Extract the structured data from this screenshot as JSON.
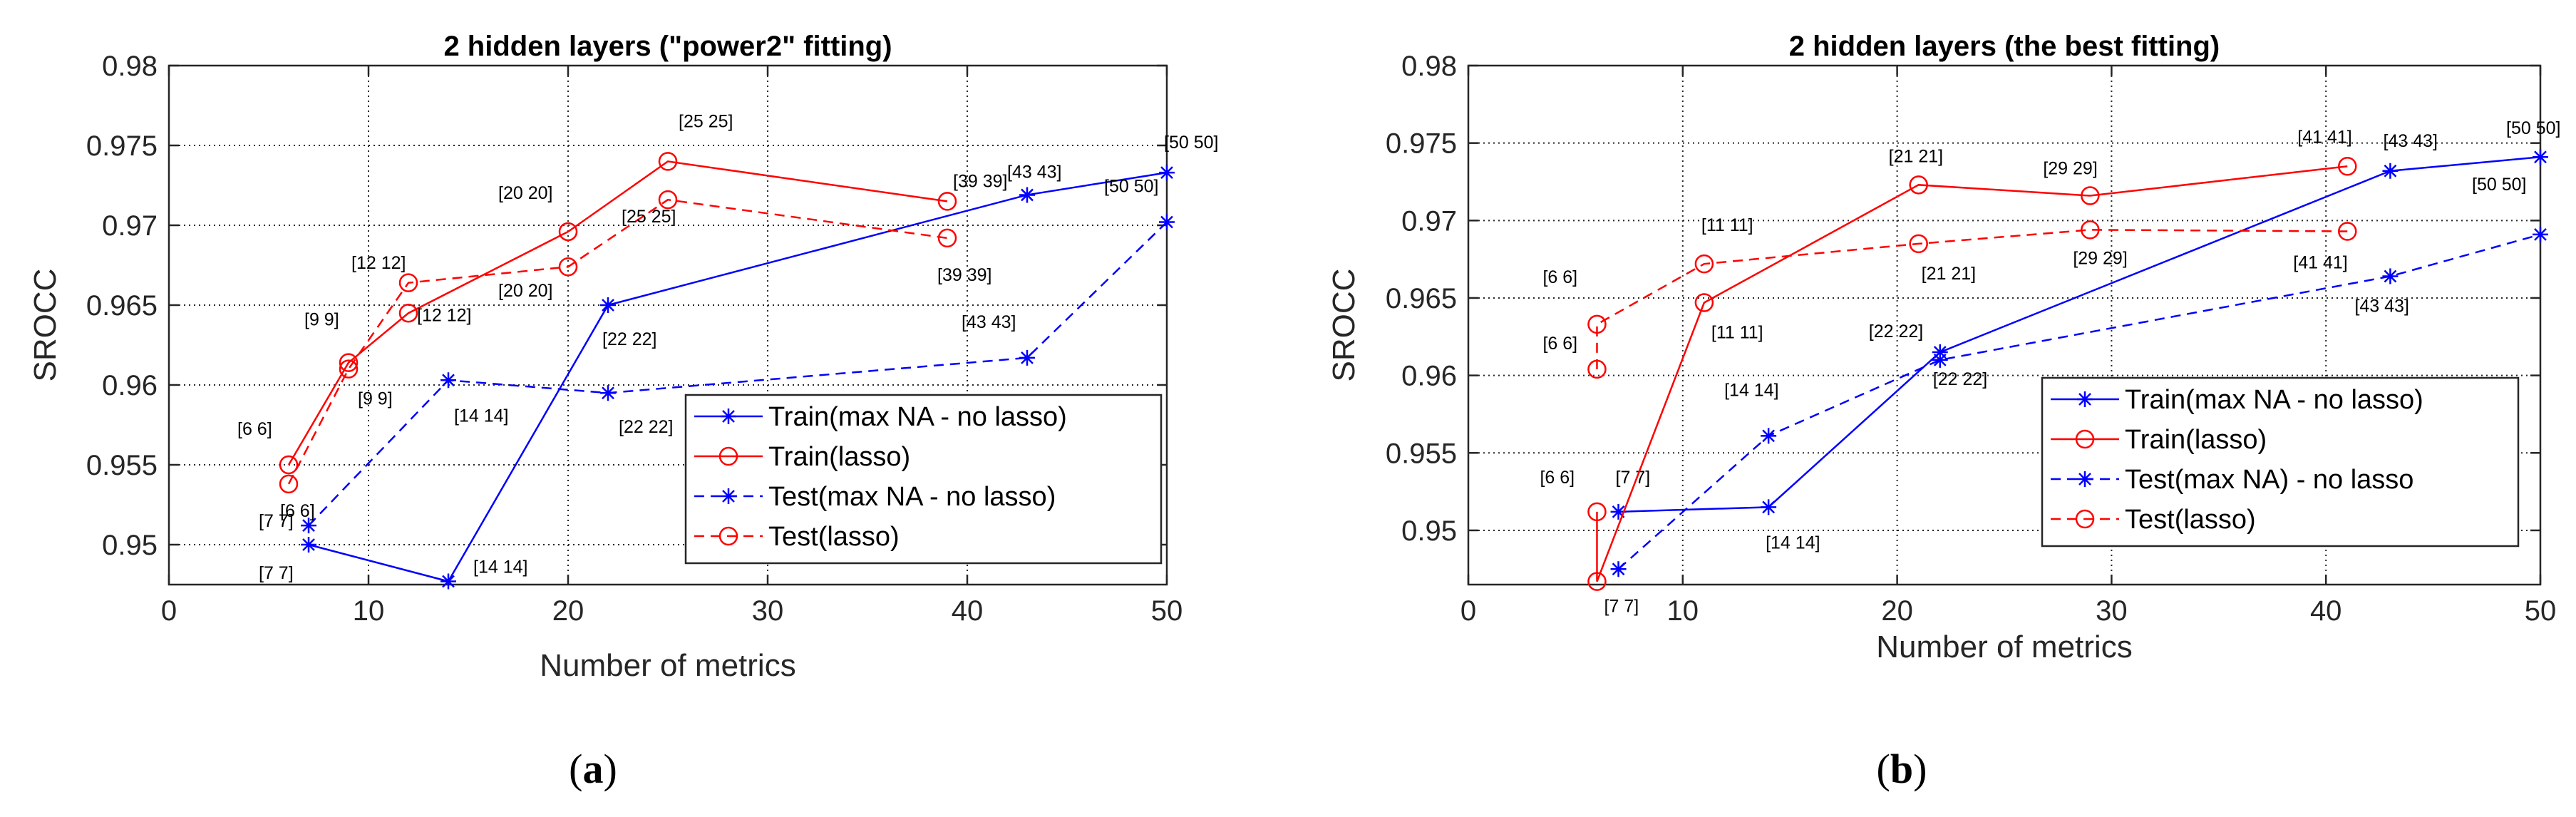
{
  "chart_data": [
    {
      "type": "line",
      "title": "2 hidden layers (\"power2\" fitting)",
      "xlabel": "Number of metrics",
      "ylabel": "SROCC",
      "xlim": [
        0,
        50
      ],
      "ylim": [
        0.9475,
        0.98
      ],
      "xticks": [
        0,
        10,
        20,
        30,
        40,
        50
      ],
      "yticks": [
        0.95,
        0.955,
        0.96,
        0.965,
        0.97,
        0.975,
        0.98
      ],
      "ytick_labels": [
        "0.95",
        "0.955",
        "0.96",
        "0.965",
        "0.97",
        "0.975",
        "0.98"
      ],
      "grid": true,
      "caption_open": "(",
      "caption_letter": "a",
      "caption_close": ")",
      "legend_position": "bottom-right",
      "series": [
        {
          "name": "Train(max NA - no lasso)",
          "color": "#0000ff",
          "style": "solid",
          "marker": "star",
          "x": [
            7,
            14,
            22,
            43,
            50
          ],
          "y": [
            0.95,
            0.9477,
            0.965,
            0.9719,
            0.9733
          ],
          "labels": [
            "[7 7]",
            "[14 14]",
            "[22 22]",
            "[43 43]",
            "[50 50]"
          ]
        },
        {
          "name": "Train(lasso)",
          "color": "#ff0000",
          "style": "solid",
          "marker": "circle",
          "x": [
            6,
            9,
            12,
            20,
            25,
            39
          ],
          "y": [
            0.955,
            0.9614,
            0.9645,
            0.9696,
            0.974,
            0.9715
          ],
          "labels": [
            "[6 6]",
            "[9 9]",
            "[12 12]",
            "[20 20]",
            "[25 25]",
            "[39 39]"
          ]
        },
        {
          "name": "Test(max NA - no lasso)",
          "color": "#0000ff",
          "style": "dashed",
          "marker": "star",
          "x": [
            7,
            14,
            22,
            43,
            50
          ],
          "y": [
            0.9512,
            0.9603,
            0.9595,
            0.9617,
            0.9702
          ],
          "labels": [
            "[7 7]",
            "[14 14]",
            "[22 22]",
            "[43 43]",
            "[50 50]"
          ]
        },
        {
          "name": "Test(lasso)",
          "color": "#ff0000",
          "style": "dashed",
          "marker": "circle",
          "x": [
            6,
            9,
            12,
            20,
            25,
            39
          ],
          "y": [
            0.9538,
            0.961,
            0.9664,
            0.9674,
            0.9716,
            0.9692
          ],
          "labels": [
            "[6 6]",
            "[9 9]",
            "[12 12]",
            "[20 20]",
            "[25 25]",
            "[39 39]"
          ]
        }
      ]
    },
    {
      "type": "line",
      "title": "2 hidden layers (the best fitting)",
      "xlabel": "Number of metrics",
      "ylabel": "SROCC",
      "xlim": [
        0,
        50
      ],
      "ylim": [
        0.9465,
        0.98
      ],
      "xticks": [
        0,
        10,
        20,
        30,
        40,
        50
      ],
      "yticks": [
        0.95,
        0.955,
        0.96,
        0.965,
        0.97,
        0.975,
        0.98
      ],
      "ytick_labels": [
        "0.95",
        "0.955",
        "0.96",
        "0.965",
        "0.97",
        "0.975",
        "0.98"
      ],
      "grid": true,
      "caption_open": "(",
      "caption_letter": "b",
      "caption_close": ")",
      "legend_position": "bottom-right",
      "series": [
        {
          "name": "Train(max NA - no lasso)",
          "color": "#0000ff",
          "style": "solid",
          "marker": "star",
          "x": [
            7,
            14,
            22,
            43,
            50
          ],
          "y": [
            0.9512,
            0.9515,
            0.9615,
            0.9732,
            0.9741
          ],
          "labels": [
            "[7 7]",
            "[14 14]",
            "[22 22]",
            "[43 43]",
            "[50 50]"
          ]
        },
        {
          "name": "Train(lasso)",
          "color": "#ff0000",
          "style": "solid",
          "marker": "circle",
          "x": [
            6,
            6,
            11,
            21,
            29,
            41
          ],
          "y": [
            0.9512,
            0.9467,
            0.9647,
            0.9723,
            0.9716,
            0.9735
          ],
          "labels": [
            "[6 6]",
            "",
            "[11 11]",
            "[21 21]",
            "[29 29]",
            "[41 41]"
          ]
        },
        {
          "name": "Test(max NA) - no lasso",
          "color": "#0000ff",
          "style": "dashed",
          "marker": "star",
          "x": [
            7,
            14,
            22,
            43,
            50
          ],
          "y": [
            0.9475,
            0.9561,
            0.961,
            0.9664,
            0.9691
          ],
          "labels": [
            "[7 7]",
            "[14 14]",
            "[22 22]",
            "[43 43]",
            "[50 50]"
          ]
        },
        {
          "name": "Test(lasso)",
          "color": "#ff0000",
          "style": "dashed",
          "marker": "circle",
          "x": [
            6,
            6,
            11,
            21,
            29,
            41
          ],
          "y": [
            0.9604,
            0.9633,
            0.9672,
            0.9685,
            0.9694,
            0.9693
          ],
          "labels": [
            "[6 6]",
            "[6 6]",
            "[11 11]",
            "[21 21]",
            "[29 29]",
            "[41 41]"
          ]
        }
      ]
    }
  ]
}
